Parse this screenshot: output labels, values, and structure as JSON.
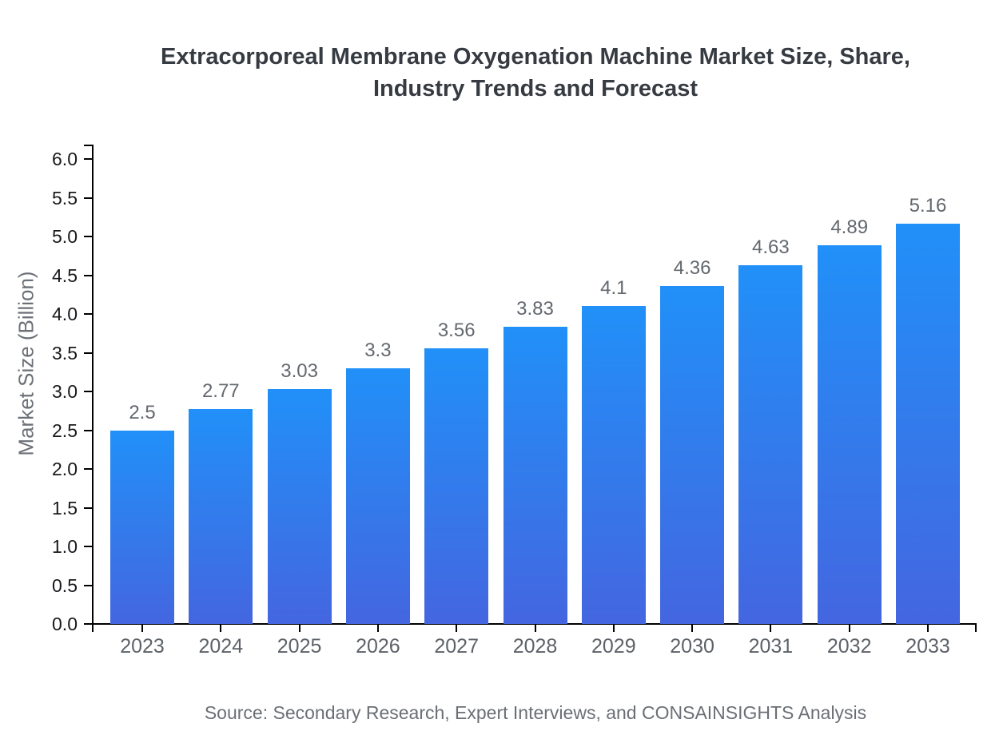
{
  "title": {
    "line1": "Extracorporeal Membrane Oxygenation Machine Market Size, Share,",
    "line2": "Industry Trends and Forecast"
  },
  "source": "Source: Secondary Research, Expert Interviews, and CONSAINSIGHTS Analysis",
  "y_axis": {
    "label": "Market Size (Billion)"
  },
  "colors": {
    "bar_gradient_top": "#2190f8",
    "bar_gradient_bottom": "#4466e0",
    "axis_line": "#000000",
    "title_text": "#363b42",
    "tick_number_text": "#17191c",
    "gray_label_text": "#63686e"
  },
  "chart_data": {
    "type": "bar",
    "title": "Extracorporeal Membrane Oxygenation Machine Market Size, Share, Industry Trends and Forecast",
    "categories": [
      "2023",
      "2024",
      "2025",
      "2026",
      "2027",
      "2028",
      "2029",
      "2030",
      "2031",
      "2032",
      "2033"
    ],
    "values": [
      2.5,
      2.77,
      3.03,
      3.3,
      3.56,
      3.83,
      4.1,
      4.36,
      4.63,
      4.89,
      5.16
    ],
    "value_labels": [
      "2.5",
      "2.77",
      "3.03",
      "3.3",
      "3.56",
      "3.83",
      "4.1",
      "4.36",
      "4.63",
      "4.89",
      "5.16"
    ],
    "xlabel": "",
    "ylabel": "Market Size (Billion)",
    "ylim": [
      0,
      6
    ],
    "ytick_step": 0.5,
    "ytick_labels": [
      "0.0",
      "0.5",
      "1.0",
      "1.5",
      "2.0",
      "2.5",
      "3.0",
      "3.5",
      "4.0",
      "4.5",
      "5.0",
      "5.5",
      "6.0"
    ],
    "grid": false,
    "legend_position": "none",
    "bar_color_top": "#2190f8",
    "bar_color_bottom": "#4466e0"
  }
}
